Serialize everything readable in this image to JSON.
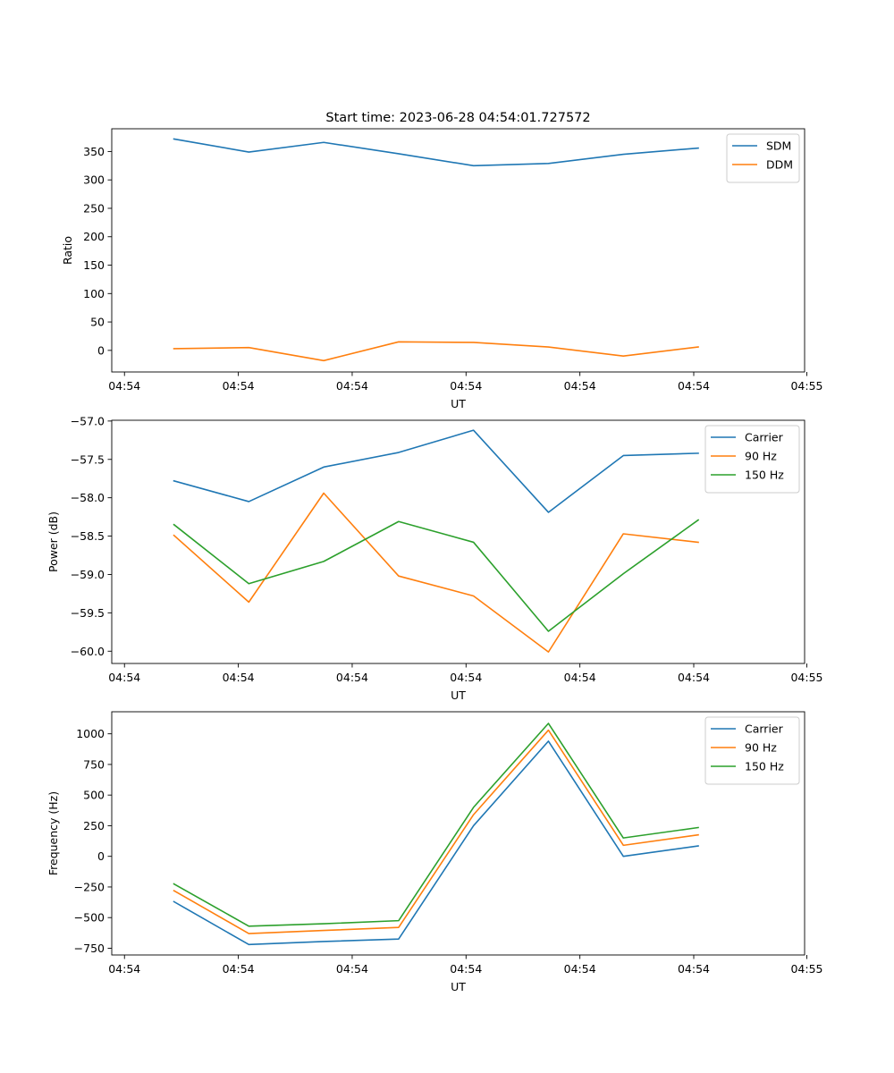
{
  "figure": {
    "title": "Start time: 2023-06-28 04:54:01.727572"
  },
  "colors": {
    "blue": "#1f77b4",
    "orange": "#ff7f0e",
    "green": "#2ca02c"
  },
  "x_tick_labels": [
    "04:54",
    "04:54",
    "04:54",
    "04:54",
    "04:54",
    "04:54",
    "04:55"
  ],
  "chart_data": [
    {
      "type": "line",
      "title": "Start time: 2023-06-28 04:54:01.727572",
      "xlabel": "UT",
      "ylabel": "Ratio",
      "xlim": [
        -0.83,
        8.42
      ],
      "ylim": [
        -38,
        390
      ],
      "x_ticks": [
        -0.66,
        0.86,
        2.38,
        3.9,
        5.42,
        6.94,
        8.45
      ],
      "y_ticks": [
        0,
        50,
        100,
        150,
        200,
        250,
        300,
        350
      ],
      "x": [
        0,
        1,
        2,
        3,
        4,
        5,
        6,
        7
      ],
      "legend": "upper right",
      "grid": false,
      "series": [
        {
          "name": "SDM",
          "color": "blue",
          "values": [
            372,
            349,
            366,
            346,
            325,
            329,
            345,
            356
          ]
        },
        {
          "name": "DDM",
          "color": "orange",
          "values": [
            3,
            5,
            -18,
            15,
            14,
            6,
            -10,
            6
          ]
        }
      ]
    },
    {
      "type": "line",
      "xlabel": "UT",
      "ylabel": "Power (dB)",
      "xlim": [
        -0.83,
        8.42
      ],
      "ylim": [
        -60.16,
        -56.99
      ],
      "x_ticks": [
        -0.66,
        0.86,
        2.38,
        3.9,
        5.42,
        6.94,
        8.45
      ],
      "y_ticks": [
        -60.0,
        -59.5,
        -59.0,
        -58.5,
        -58.0,
        -57.5,
        -57.0
      ],
      "y_tick_labels": [
        "−60.0",
        "−59.5",
        "−59.0",
        "−58.5",
        "−58.0",
        "−57.5",
        "−57.0"
      ],
      "x": [
        0,
        1,
        2,
        3,
        4,
        5,
        6,
        7
      ],
      "legend": "upper right",
      "grid": false,
      "series": [
        {
          "name": "Carrier",
          "color": "blue",
          "values": [
            -57.78,
            -58.05,
            -57.6,
            -57.41,
            -57.12,
            -58.19,
            -57.45,
            -57.42
          ]
        },
        {
          "name": "90 Hz",
          "color": "orange",
          "values": [
            -58.49,
            -59.36,
            -57.94,
            -59.02,
            -59.28,
            -60.01,
            -58.47,
            -58.58
          ]
        },
        {
          "name": "150 Hz",
          "color": "green",
          "values": [
            -58.35,
            -59.12,
            -58.83,
            -58.31,
            -58.58,
            -59.74,
            -58.99,
            -58.29
          ]
        }
      ]
    },
    {
      "type": "line",
      "xlabel": "UT",
      "ylabel": "Frequency (Hz)",
      "xlim": [
        -0.83,
        8.42
      ],
      "ylim": [
        -805,
        1180
      ],
      "x_ticks": [
        -0.66,
        0.86,
        2.38,
        3.9,
        5.42,
        6.94,
        8.45
      ],
      "y_ticks": [
        -750,
        -500,
        -250,
        0,
        250,
        500,
        750,
        1000
      ],
      "y_tick_labels": [
        "−750",
        "−500",
        "−250",
        "0",
        "250",
        "500",
        "750",
        "1000"
      ],
      "x": [
        0,
        1,
        2,
        3,
        4,
        5,
        6,
        7
      ],
      "legend": "upper right",
      "grid": false,
      "series": [
        {
          "name": "Carrier",
          "color": "blue",
          "values": [
            -370,
            -720,
            -695,
            -675,
            250,
            940,
            0,
            85
          ]
        },
        {
          "name": "90 Hz",
          "color": "orange",
          "values": [
            -280,
            -630,
            -605,
            -580,
            340,
            1030,
            90,
            175
          ]
        },
        {
          "name": "150 Hz",
          "color": "green",
          "values": [
            -225,
            -570,
            -550,
            -525,
            400,
            1085,
            150,
            235
          ]
        }
      ]
    }
  ]
}
